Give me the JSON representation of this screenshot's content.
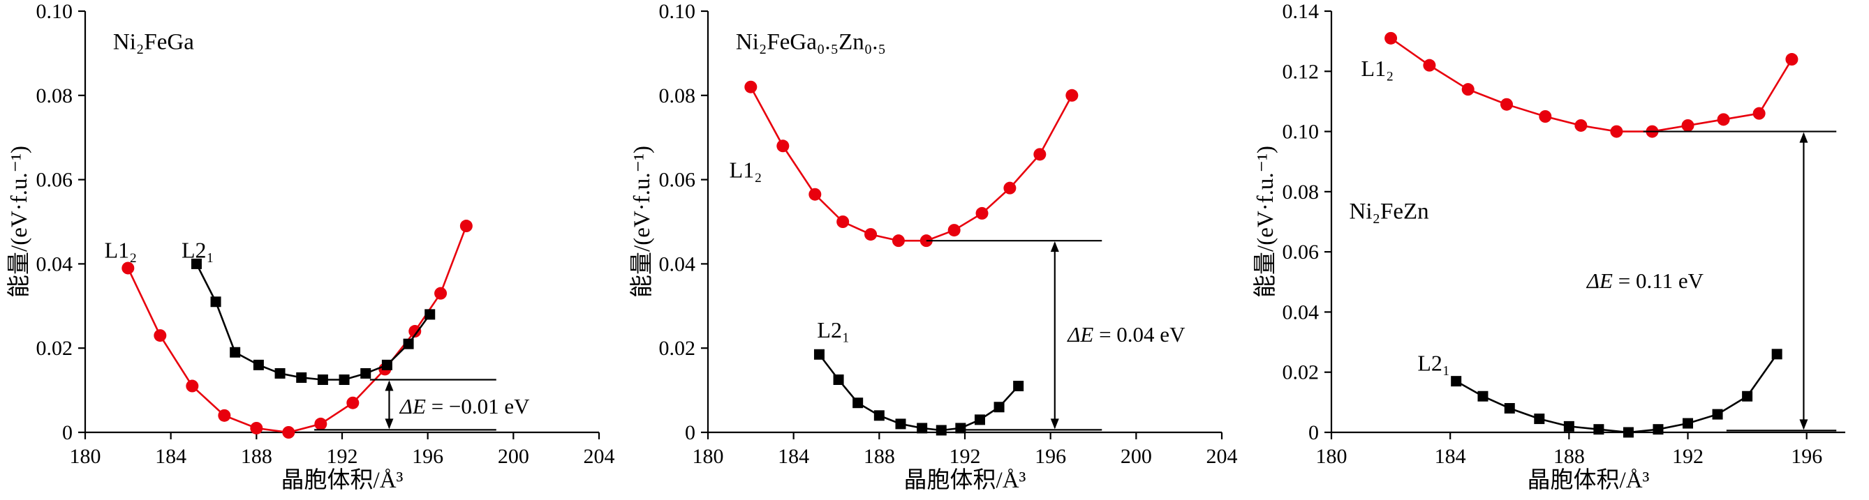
{
  "figure": {
    "background": "#ffffff",
    "x_axis_label": "晶胞体积/Å³",
    "y_axis_label": "能量/(eV·f.u.⁻¹)"
  },
  "colors": {
    "l12_red": "#e8000d",
    "l21_black": "#000000",
    "axis": "#000000"
  },
  "chart_data": [
    {
      "type": "line",
      "title": "Ni₂FeGa",
      "title_pos": [
        181.3,
        0.091
      ],
      "xlabel": "晶胞体积/Å³",
      "ylabel": "能量/(eV·f.u.⁻¹)",
      "xlim": [
        180,
        204
      ],
      "ylim": [
        0,
        0.1
      ],
      "xticks": [
        180,
        184,
        188,
        192,
        196,
        200,
        204
      ],
      "yticks": [
        0,
        0.02,
        0.04,
        0.06,
        0.08,
        0.1
      ],
      "grid": false,
      "series": [
        {
          "name": "L1₂",
          "marker": "circle",
          "color": "#e8000d",
          "label_pos": [
            180.9,
            0.0415
          ],
          "x": [
            182.0,
            183.5,
            185.0,
            186.5,
            188.0,
            189.5,
            191.0,
            192.5,
            194.0,
            195.4,
            196.6,
            197.8
          ],
          "y": [
            0.039,
            0.023,
            0.011,
            0.004,
            0.001,
            0.0,
            0.002,
            0.007,
            0.015,
            0.024,
            0.033,
            0.049
          ]
        },
        {
          "name": "L2₁",
          "marker": "square",
          "color": "#000000",
          "label_pos": [
            184.5,
            0.0415
          ],
          "x": [
            185.2,
            186.1,
            187.0,
            188.1,
            189.1,
            190.1,
            191.1,
            192.1,
            193.1,
            194.1,
            195.1,
            196.1
          ],
          "y": [
            0.04,
            0.031,
            0.019,
            0.016,
            0.014,
            0.013,
            0.0125,
            0.0125,
            0.014,
            0.016,
            0.021,
            0.028
          ]
        }
      ],
      "annotation": {
        "delta_e_italic": "ΔE",
        "delta_e_rest": " = −0.01 eV",
        "label": "ΔE = −0.01 eV",
        "label_pos": [
          194.7,
          0.0045
        ],
        "upper_line": {
          "y": 0.0125,
          "x0": 193.3,
          "x1": 199.2
        },
        "lower_line": {
          "y": 0.0006,
          "x0": 190.7,
          "x1": 199.2
        },
        "arrow_x": 194.2
      }
    },
    {
      "type": "line",
      "title": "Ni₂FeGa₀.₅Zn₀.₅",
      "title_pos": [
        181.3,
        0.091
      ],
      "xlabel": "晶胞体积/Å³",
      "ylabel": "能量/(eV·f.u.⁻¹)",
      "xlim": [
        180,
        204
      ],
      "ylim": [
        0,
        0.1
      ],
      "xticks": [
        180,
        184,
        188,
        192,
        196,
        200,
        204
      ],
      "yticks": [
        0,
        0.02,
        0.04,
        0.06,
        0.08,
        0.1
      ],
      "grid": false,
      "series": [
        {
          "name": "L1₂",
          "marker": "circle",
          "color": "#e8000d",
          "label_pos": [
            181.0,
            0.0605
          ],
          "x": [
            182.0,
            183.5,
            185.0,
            186.3,
            187.6,
            188.9,
            190.2,
            191.5,
            192.8,
            194.1,
            195.5,
            197.0
          ],
          "y": [
            0.082,
            0.068,
            0.0565,
            0.05,
            0.047,
            0.0455,
            0.0455,
            0.048,
            0.052,
            0.058,
            0.066,
            0.08
          ]
        },
        {
          "name": "L2₁",
          "marker": "square",
          "color": "#000000",
          "label_pos": [
            185.1,
            0.0225
          ],
          "x": [
            185.2,
            186.1,
            187.0,
            188.0,
            189.0,
            190.0,
            190.9,
            191.8,
            192.7,
            193.6,
            194.5
          ],
          "y": [
            0.0185,
            0.0125,
            0.007,
            0.004,
            0.002,
            0.001,
            0.0005,
            0.001,
            0.003,
            0.006,
            0.011
          ]
        }
      ],
      "annotation": {
        "delta_e_italic": "ΔE",
        "delta_e_rest": " = 0.04 eV",
        "label": "ΔE = 0.04 eV",
        "label_pos": [
          196.8,
          0.0215
        ],
        "upper_line": {
          "y": 0.0455,
          "x0": 190.2,
          "x1": 198.4
        },
        "lower_line": {
          "y": 0.0006,
          "x0": 191.9,
          "x1": 198.4
        },
        "arrow_x": 196.2
      }
    },
    {
      "type": "line",
      "title": "Ni₂FeZn",
      "title_pos": [
        180.6,
        0.071
      ],
      "xlabel": "晶胞体积/Å³",
      "ylabel": "能量/(eV·f.u.⁻¹)",
      "xlim": [
        180,
        197.3
      ],
      "ylim": [
        0,
        0.14
      ],
      "xticks": [
        180,
        184,
        188,
        192,
        196
      ],
      "yticks": [
        0,
        0.02,
        0.04,
        0.06,
        0.08,
        0.1,
        0.12,
        0.14
      ],
      "grid": false,
      "series": [
        {
          "name": "L1₂",
          "marker": "circle",
          "color": "#e8000d",
          "label_pos": [
            181.0,
            0.1185
          ],
          "x": [
            182.0,
            183.3,
            184.6,
            185.9,
            187.2,
            188.4,
            189.6,
            190.8,
            192.0,
            193.2,
            194.4,
            195.5
          ],
          "y": [
            0.131,
            0.122,
            0.114,
            0.109,
            0.105,
            0.102,
            0.1,
            0.1,
            0.102,
            0.104,
            0.106,
            0.124
          ]
        },
        {
          "name": "L2₁",
          "marker": "square",
          "color": "#000000",
          "label_pos": [
            182.9,
            0.0205
          ],
          "x": [
            184.2,
            185.1,
            186.0,
            187.0,
            188.0,
            189.0,
            190.0,
            191.0,
            192.0,
            193.0,
            194.0,
            195.0
          ],
          "y": [
            0.017,
            0.012,
            0.008,
            0.0045,
            0.002,
            0.001,
            0.0,
            0.001,
            0.003,
            0.006,
            0.012,
            0.026
          ]
        }
      ],
      "annotation": {
        "delta_e_italic": "ΔE",
        "delta_e_rest": " = 0.11 eV",
        "label": "ΔE = 0.11 eV",
        "label_pos": [
          188.6,
          0.048
        ],
        "upper_line": {
          "y": 0.1,
          "x0": 190.5,
          "x1": 197.0
        },
        "lower_line": {
          "y": 0.0006,
          "x0": 193.3,
          "x1": 197.0
        },
        "arrow_x": 195.9
      }
    }
  ]
}
